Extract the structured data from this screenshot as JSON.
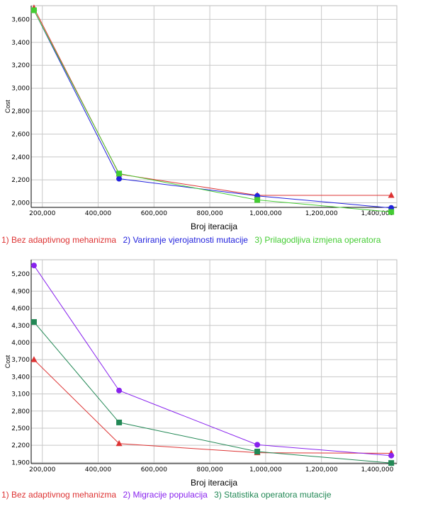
{
  "chart_data": [
    {
      "type": "line",
      "xlabel": "Broj iteracija",
      "ylabel": "Cost",
      "xlim": [
        160000,
        1470000
      ],
      "ylim": [
        1960,
        3720
      ],
      "x_ticks": [
        200000,
        400000,
        600000,
        800000,
        1000000,
        1200000,
        1400000
      ],
      "x_tick_labels": [
        "200,000",
        "400,000",
        "600,000",
        "800,000",
        "1,000,000",
        "1,200,000",
        "1,400,000"
      ],
      "y_ticks": [
        2000,
        2200,
        2400,
        2600,
        2800,
        3000,
        3200,
        3400,
        3600
      ],
      "y_tick_labels": [
        "2,000",
        "2,200",
        "2,400",
        "2,600",
        "2,800",
        "3,000",
        "3,200",
        "3,400",
        "3,600"
      ],
      "grid": true,
      "legend_position": "bottom",
      "x": [
        170000,
        475000,
        970000,
        1450000
      ],
      "series": [
        {
          "name": "1) Bez adaptivnog mehanizma",
          "color": "#dd3333",
          "marker": "triangle",
          "values": [
            3700,
            2250,
            2065,
            2065
          ]
        },
        {
          "name": "2) Variranje vjerojatnosti mutacije",
          "color": "#2222dd",
          "marker": "circle",
          "values": [
            3680,
            2210,
            2060,
            1955
          ]
        },
        {
          "name": "3) Prilagodljiva izmjena operatora",
          "color": "#44cc33",
          "marker": "square",
          "values": [
            3680,
            2255,
            2025,
            1920
          ]
        }
      ]
    },
    {
      "type": "line",
      "xlabel": "Broj iteracija",
      "ylabel": "Cost",
      "xlim": [
        160000,
        1470000
      ],
      "ylim": [
        1880,
        5450
      ],
      "x_ticks": [
        200000,
        400000,
        600000,
        800000,
        1000000,
        1200000,
        1400000
      ],
      "x_tick_labels": [
        "200,000",
        "400,000",
        "600,000",
        "800,000",
        "1,000,000",
        "1,200,000",
        "1,400,000"
      ],
      "y_ticks": [
        1900,
        2200,
        2500,
        2800,
        3100,
        3400,
        3700,
        4000,
        4300,
        4600,
        4900,
        5200
      ],
      "y_tick_labels": [
        "1,900",
        "2,200",
        "2,500",
        "2,800",
        "3,100",
        "3,400",
        "3,700",
        "4,000",
        "4,300",
        "4,600",
        "4,900",
        "5,200"
      ],
      "grid": true,
      "legend_position": "bottom",
      "x": [
        170000,
        475000,
        970000,
        1450000
      ],
      "series": [
        {
          "name": "1) Bez adaptivnog mehanizma",
          "color": "#dd3333",
          "marker": "triangle",
          "values": [
            3700,
            2230,
            2070,
            2060
          ]
        },
        {
          "name": "2) Migracije populacija",
          "color": "#8822ee",
          "marker": "circle",
          "values": [
            5350,
            3160,
            2210,
            2020
          ]
        },
        {
          "name": "3) Statistika operatora mutacije",
          "color": "#228855",
          "marker": "square",
          "values": [
            4360,
            2600,
            2090,
            1890
          ]
        }
      ]
    }
  ]
}
